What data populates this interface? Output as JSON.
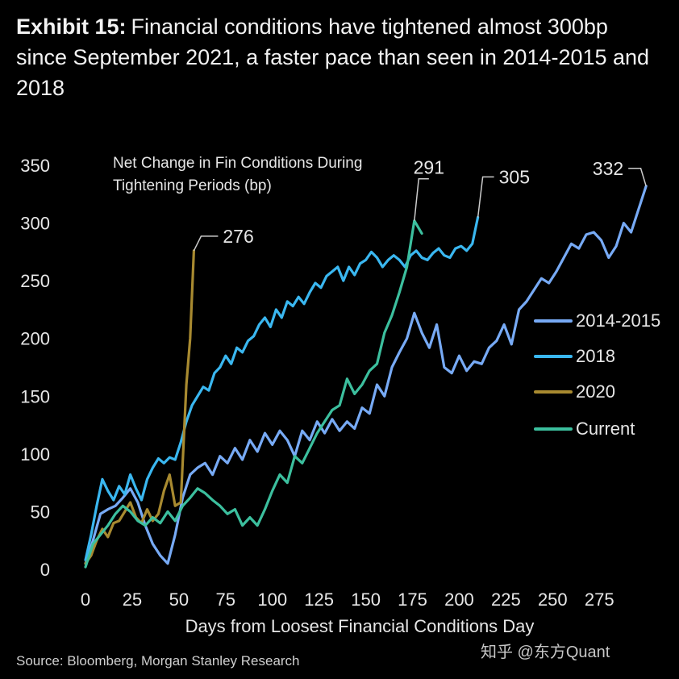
{
  "header": {
    "exhibit_label": "Exhibit 15:",
    "title": "Financial conditions have tightened almost 300bp since September 2021, a faster pace than seen in 2014-2015 and 2018"
  },
  "footer": {
    "source": "Source: Bloomberg, Morgan Stanley Research",
    "watermark": "知乎 @东方Quant"
  },
  "colors": {
    "background": "#000000",
    "s2014": "#77aaf5",
    "s2018": "#3ab7f0",
    "s2020": "#a88a30",
    "current": "#3cbf9e",
    "text": "#e6e6e6"
  },
  "chart_data": {
    "type": "line",
    "title": "Net Change in Fin Conditions During Tightening Periods (bp)",
    "xlabel": "Days from Loosest Financial Conditions Day",
    "ylabel": "",
    "xlim": [
      0,
      290
    ],
    "ylim": [
      0,
      350
    ],
    "xticks": [
      0,
      25,
      50,
      75,
      100,
      125,
      150,
      175,
      200,
      225,
      250,
      275
    ],
    "yticks": [
      0,
      50,
      100,
      150,
      200,
      250,
      300,
      350
    ],
    "legend_position": "right",
    "series": [
      {
        "name": "2014-2015",
        "color": "#77aaf5",
        "end_label": "332",
        "points": [
          [
            0,
            5
          ],
          [
            4,
            25
          ],
          [
            8,
            48
          ],
          [
            12,
            52
          ],
          [
            16,
            55
          ],
          [
            20,
            62
          ],
          [
            24,
            70
          ],
          [
            28,
            58
          ],
          [
            32,
            38
          ],
          [
            36,
            22
          ],
          [
            40,
            12
          ],
          [
            44,
            5
          ],
          [
            48,
            30
          ],
          [
            52,
            62
          ],
          [
            56,
            82
          ],
          [
            60,
            88
          ],
          [
            64,
            92
          ],
          [
            68,
            82
          ],
          [
            72,
            98
          ],
          [
            76,
            92
          ],
          [
            80,
            105
          ],
          [
            84,
            95
          ],
          [
            88,
            112
          ],
          [
            92,
            102
          ],
          [
            96,
            118
          ],
          [
            100,
            108
          ],
          [
            104,
            120
          ],
          [
            108,
            112
          ],
          [
            112,
            98
          ],
          [
            116,
            120
          ],
          [
            120,
            112
          ],
          [
            124,
            128
          ],
          [
            128,
            118
          ],
          [
            132,
            130
          ],
          [
            136,
            120
          ],
          [
            140,
            128
          ],
          [
            144,
            122
          ],
          [
            148,
            140
          ],
          [
            152,
            135
          ],
          [
            156,
            160
          ],
          [
            160,
            150
          ],
          [
            164,
            175
          ],
          [
            168,
            188
          ],
          [
            172,
            200
          ],
          [
            176,
            222
          ],
          [
            180,
            205
          ],
          [
            184,
            192
          ],
          [
            188,
            212
          ],
          [
            192,
            175
          ],
          [
            196,
            170
          ],
          [
            200,
            185
          ],
          [
            204,
            172
          ],
          [
            208,
            180
          ],
          [
            212,
            178
          ],
          [
            216,
            192
          ],
          [
            220,
            198
          ],
          [
            224,
            212
          ],
          [
            228,
            195
          ],
          [
            232,
            225
          ],
          [
            236,
            232
          ],
          [
            240,
            242
          ],
          [
            244,
            252
          ],
          [
            248,
            248
          ],
          [
            252,
            258
          ],
          [
            256,
            270
          ],
          [
            260,
            282
          ],
          [
            264,
            278
          ],
          [
            268,
            290
          ],
          [
            272,
            292
          ],
          [
            276,
            285
          ],
          [
            280,
            270
          ],
          [
            284,
            280
          ],
          [
            288,
            300
          ],
          [
            292,
            292
          ],
          [
            296,
            312
          ],
          [
            300,
            332
          ]
        ]
      },
      {
        "name": "2018",
        "color": "#3ab7f0",
        "end_label": "305",
        "points": [
          [
            0,
            8
          ],
          [
            3,
            30
          ],
          [
            6,
            55
          ],
          [
            9,
            78
          ],
          [
            12,
            68
          ],
          [
            15,
            60
          ],
          [
            18,
            72
          ],
          [
            21,
            65
          ],
          [
            24,
            82
          ],
          [
            27,
            70
          ],
          [
            30,
            60
          ],
          [
            33,
            78
          ],
          [
            36,
            88
          ],
          [
            39,
            96
          ],
          [
            42,
            92
          ],
          [
            45,
            97
          ],
          [
            48,
            95
          ],
          [
            51,
            110
          ],
          [
            54,
            128
          ],
          [
            57,
            142
          ],
          [
            60,
            150
          ],
          [
            63,
            158
          ],
          [
            66,
            155
          ],
          [
            69,
            170
          ],
          [
            72,
            175
          ],
          [
            75,
            185
          ],
          [
            78,
            178
          ],
          [
            81,
            192
          ],
          [
            84,
            188
          ],
          [
            87,
            198
          ],
          [
            90,
            202
          ],
          [
            93,
            212
          ],
          [
            96,
            218
          ],
          [
            99,
            210
          ],
          [
            102,
            225
          ],
          [
            105,
            218
          ],
          [
            108,
            232
          ],
          [
            111,
            228
          ],
          [
            114,
            236
          ],
          [
            117,
            230
          ],
          [
            120,
            240
          ],
          [
            123,
            248
          ],
          [
            126,
            244
          ],
          [
            129,
            254
          ],
          [
            132,
            258
          ],
          [
            135,
            262
          ],
          [
            138,
            250
          ],
          [
            141,
            262
          ],
          [
            144,
            255
          ],
          [
            147,
            265
          ],
          [
            150,
            268
          ],
          [
            153,
            275
          ],
          [
            156,
            270
          ],
          [
            159,
            262
          ],
          [
            162,
            268
          ],
          [
            165,
            272
          ],
          [
            168,
            268
          ],
          [
            171,
            262
          ],
          [
            174,
            272
          ],
          [
            177,
            276
          ],
          [
            180,
            270
          ],
          [
            183,
            268
          ],
          [
            186,
            274
          ],
          [
            189,
            278
          ],
          [
            192,
            272
          ],
          [
            195,
            270
          ],
          [
            198,
            278
          ],
          [
            201,
            280
          ],
          [
            204,
            276
          ],
          [
            207,
            282
          ],
          [
            210,
            305
          ]
        ]
      },
      {
        "name": "2020",
        "color": "#a88a30",
        "end_label": "276",
        "points": [
          [
            0,
            5
          ],
          [
            3,
            12
          ],
          [
            6,
            25
          ],
          [
            9,
            35
          ],
          [
            12,
            28
          ],
          [
            15,
            40
          ],
          [
            18,
            42
          ],
          [
            21,
            50
          ],
          [
            24,
            58
          ],
          [
            27,
            45
          ],
          [
            30,
            40
          ],
          [
            33,
            52
          ],
          [
            36,
            42
          ],
          [
            39,
            48
          ],
          [
            42,
            68
          ],
          [
            45,
            82
          ],
          [
            48,
            55
          ],
          [
            51,
            58
          ],
          [
            54,
            160
          ],
          [
            56,
            200
          ],
          [
            58,
            276
          ]
        ]
      },
      {
        "name": "Current",
        "color": "#3cbf9e",
        "end_label": "291",
        "points": [
          [
            0,
            2
          ],
          [
            4,
            22
          ],
          [
            8,
            30
          ],
          [
            12,
            38
          ],
          [
            16,
            48
          ],
          [
            20,
            55
          ],
          [
            24,
            50
          ],
          [
            28,
            42
          ],
          [
            32,
            38
          ],
          [
            36,
            45
          ],
          [
            40,
            40
          ],
          [
            44,
            50
          ],
          [
            48,
            42
          ],
          [
            52,
            55
          ],
          [
            56,
            62
          ],
          [
            60,
            70
          ],
          [
            64,
            66
          ],
          [
            68,
            60
          ],
          [
            72,
            55
          ],
          [
            76,
            48
          ],
          [
            80,
            52
          ],
          [
            84,
            38
          ],
          [
            88,
            45
          ],
          [
            92,
            38
          ],
          [
            96,
            52
          ],
          [
            100,
            68
          ],
          [
            104,
            82
          ],
          [
            108,
            75
          ],
          [
            112,
            98
          ],
          [
            116,
            92
          ],
          [
            120,
            105
          ],
          [
            124,
            118
          ],
          [
            128,
            128
          ],
          [
            132,
            138
          ],
          [
            136,
            142
          ],
          [
            140,
            165
          ],
          [
            144,
            152
          ],
          [
            148,
            160
          ],
          [
            152,
            172
          ],
          [
            156,
            178
          ],
          [
            160,
            205
          ],
          [
            164,
            220
          ],
          [
            168,
            240
          ],
          [
            172,
            262
          ],
          [
            176,
            302
          ],
          [
            180,
            291
          ]
        ]
      }
    ]
  }
}
